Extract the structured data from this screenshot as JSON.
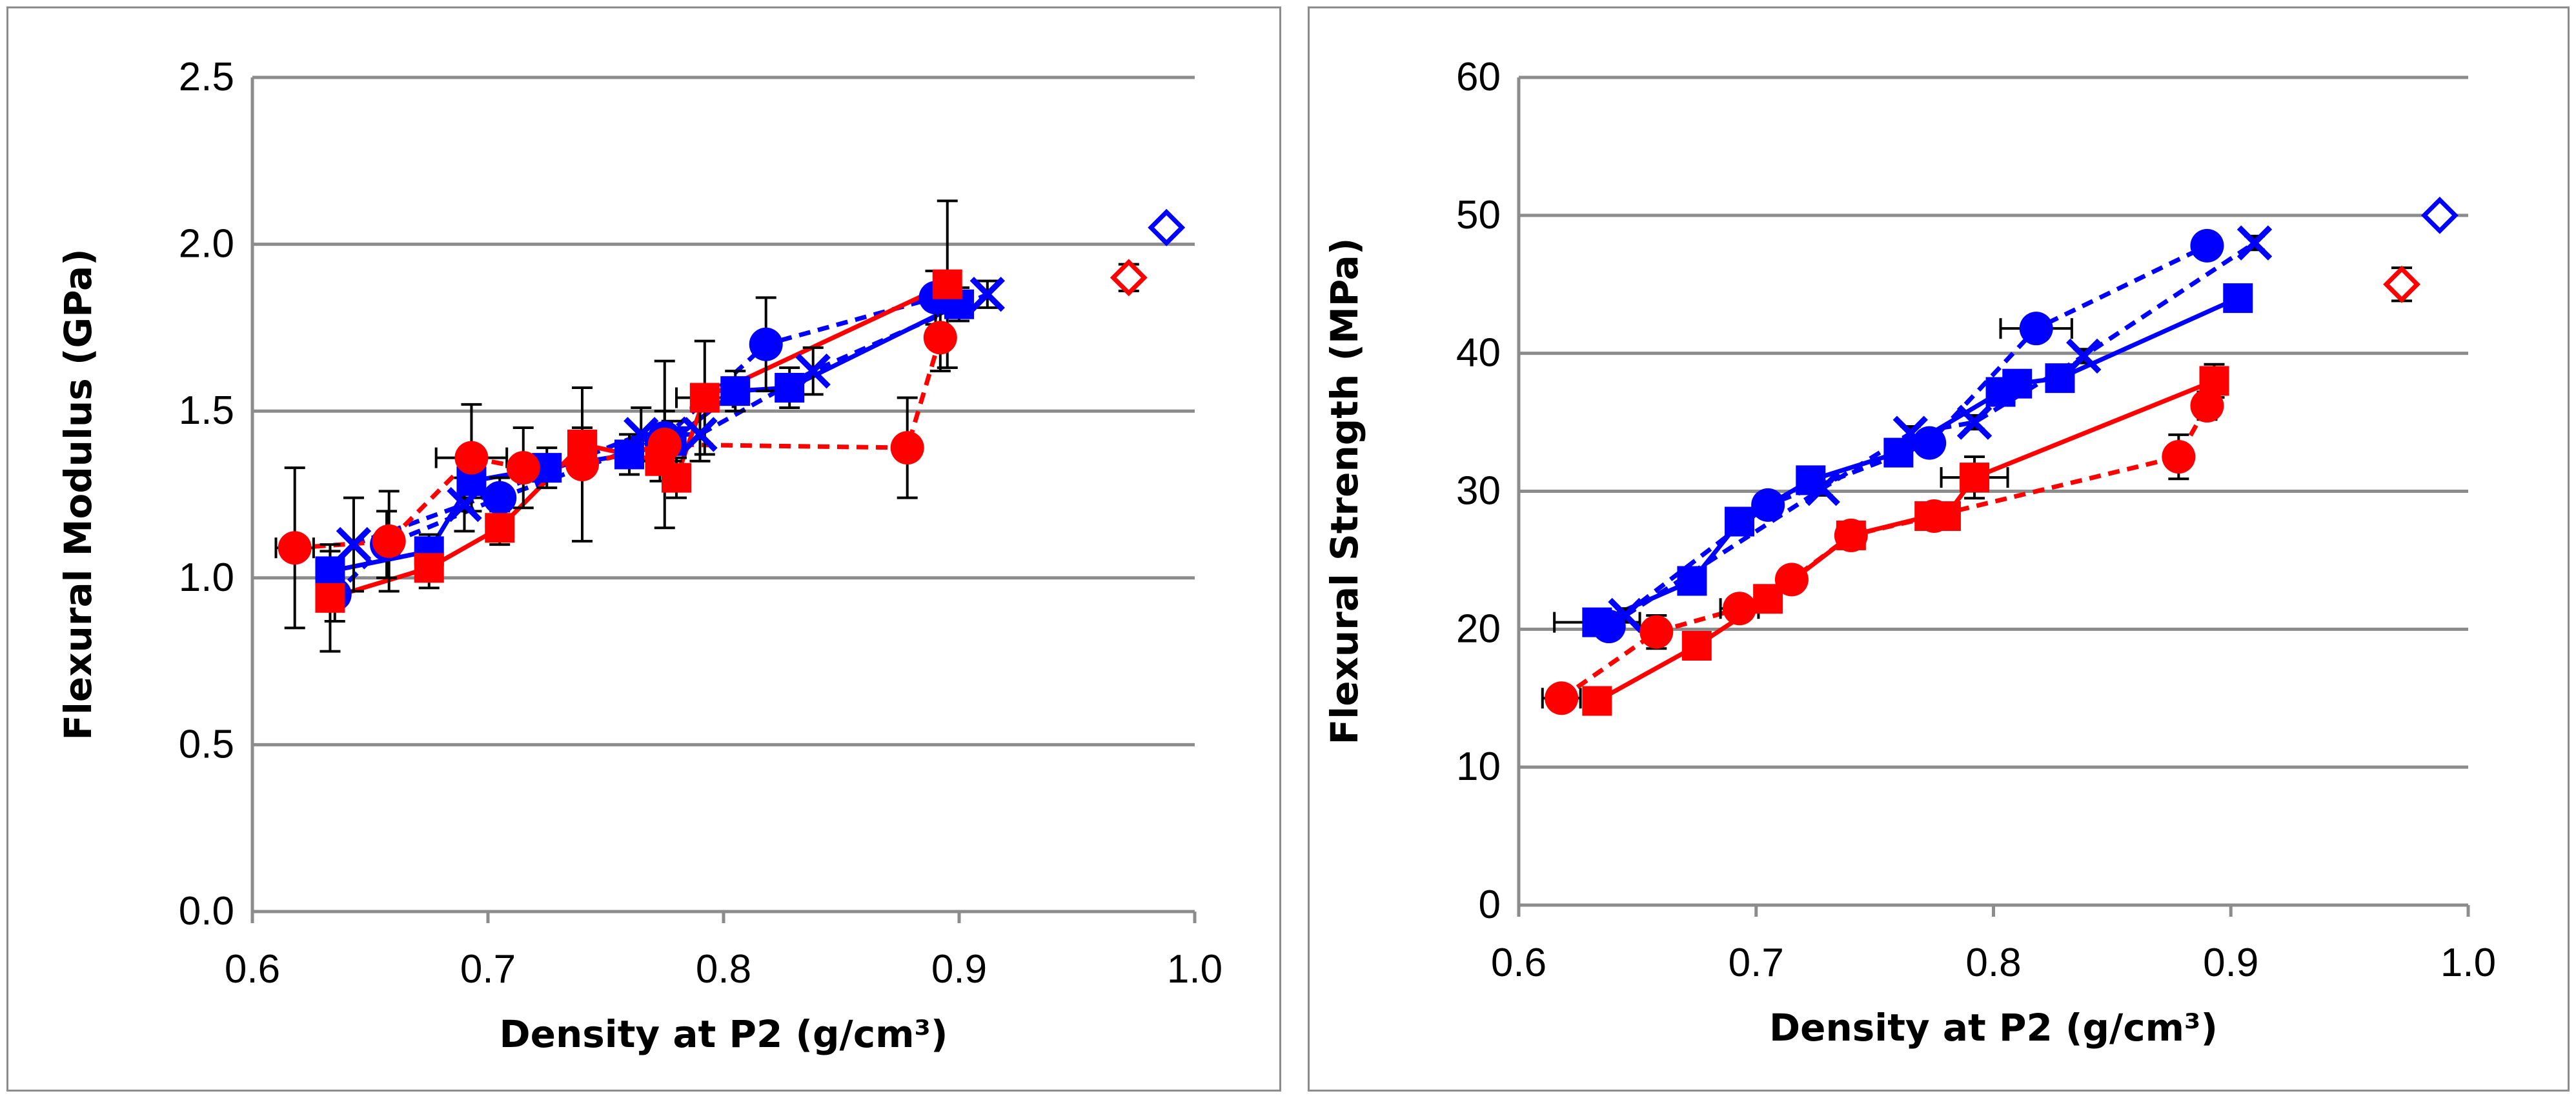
{
  "chart_data": [
    {
      "type": "scatter",
      "title": "",
      "xlabel": "Density at P2 (g/cm³)",
      "ylabel": "Flexural Modulus (GPa)",
      "xlim": [
        0.6,
        1.0
      ],
      "ylim": [
        0.0,
        2.5
      ],
      "x_ticks": [
        "0.6",
        "0.7",
        "0.8",
        "0.9",
        "1.0"
      ],
      "y_ticks": [
        "0.0",
        "0.5",
        "1.0",
        "1.5",
        "2.0",
        "2.5"
      ],
      "grid": "horizontal",
      "legend": "none",
      "series": [
        {
          "name": "blue-circle-dashed",
          "color": "#0000ff",
          "marker": "circle",
          "line": "dashed",
          "x": [
            0.635,
            0.657,
            0.705,
            0.775,
            0.818,
            0.89
          ],
          "y": [
            0.95,
            1.1,
            1.24,
            1.42,
            1.7,
            1.84
          ],
          "yerr": [
            0.08,
            0.1,
            0.06,
            0.08,
            0.14,
            0.08
          ]
        },
        {
          "name": "blue-square-solid",
          "color": "#0000ff",
          "marker": "square",
          "line": "solid",
          "x": [
            0.633,
            0.675,
            0.693,
            0.725,
            0.76,
            0.778,
            0.805,
            0.828,
            0.9
          ],
          "y": [
            1.02,
            1.08,
            1.29,
            1.33,
            1.37,
            1.41,
            1.56,
            1.57,
            1.82
          ],
          "yerr": [
            0.06,
            0.05,
            0.05,
            0.06,
            0.06,
            0.06,
            0.06,
            0.06,
            0.05
          ]
        },
        {
          "name": "blue-x-dashed",
          "color": "#0000ff",
          "marker": "x",
          "line": "dashed",
          "x": [
            0.643,
            0.69,
            0.765,
            0.79,
            0.838,
            0.912
          ],
          "y": [
            1.1,
            1.22,
            1.43,
            1.43,
            1.62,
            1.85
          ],
          "yerr": [
            0.14,
            0.08,
            0.08,
            0.08,
            0.07,
            0.04
          ]
        },
        {
          "name": "red-circle-dashed",
          "color": "#ff0000",
          "marker": "circle",
          "line": "dashed",
          "x": [
            0.618,
            0.658,
            0.693,
            0.715,
            0.74,
            0.775,
            0.878,
            0.892
          ],
          "y": [
            1.09,
            1.11,
            1.36,
            1.33,
            1.34,
            1.4,
            1.39,
            1.72
          ],
          "yerr": [
            0.24,
            0.15,
            0.16,
            0.12,
            0.23,
            0.25,
            0.15,
            0.1
          ],
          "xerr": [
            0.008,
            0,
            0.015,
            0,
            0,
            0,
            0,
            0
          ]
        },
        {
          "name": "red-square-solid",
          "color": "#ff0000",
          "marker": "square",
          "line": "solid",
          "x": [
            0.633,
            0.675,
            0.705,
            0.74,
            0.773,
            0.78,
            0.792,
            0.895
          ],
          "y": [
            0.94,
            1.03,
            1.15,
            1.4,
            1.35,
            1.3,
            1.54,
            1.88
          ],
          "yerr": [
            0.16,
            0.06,
            0.05,
            0.05,
            0.06,
            0.06,
            0.17,
            0.25
          ],
          "xerr": [
            0,
            0,
            0,
            0,
            0,
            0,
            0.012,
            0
          ]
        },
        {
          "name": "red-diamond",
          "color": "#ff0000",
          "marker": "diamond",
          "line": "none",
          "x": [
            0.972
          ],
          "y": [
            1.9
          ],
          "yerr": [
            0.04
          ]
        },
        {
          "name": "blue-diamond",
          "color": "#0000ff",
          "marker": "diamond",
          "line": "none",
          "x": [
            0.988
          ],
          "y": [
            2.05
          ],
          "yerr": [
            0.0
          ]
        }
      ]
    },
    {
      "type": "scatter",
      "title": "",
      "xlabel": "Density at P2 (g/cm³)",
      "ylabel": "Flexural Strength (MPa)",
      "xlim": [
        0.6,
        1.0
      ],
      "ylim": [
        0,
        60
      ],
      "x_ticks": [
        "0.6",
        "0.7",
        "0.8",
        "0.9",
        "1.0"
      ],
      "y_ticks": [
        "0",
        "10",
        "20",
        "30",
        "40",
        "50",
        "60"
      ],
      "grid": "horizontal",
      "legend": "none",
      "series": [
        {
          "name": "blue-circle-dashed",
          "color": "#0000ff",
          "marker": "circle",
          "line": "dashed",
          "x": [
            0.638,
            0.705,
            0.773,
            0.818,
            0.89
          ],
          "y": [
            20.2,
            29.0,
            33.5,
            41.8,
            47.8
          ],
          "yerr": [
            0.6,
            0.6,
            0.6,
            0.8,
            0.6
          ],
          "xerr": [
            0,
            0,
            0,
            0.015,
            0
          ]
        },
        {
          "name": "blue-square-solid",
          "color": "#0000ff",
          "marker": "square",
          "line": "solid",
          "x": [
            0.633,
            0.673,
            0.693,
            0.723,
            0.76,
            0.803,
            0.81,
            0.828,
            0.903
          ],
          "y": [
            20.5,
            23.5,
            27.8,
            30.8,
            32.8,
            37.2,
            37.8,
            38.2,
            44.0
          ],
          "yerr": [
            0.5,
            0.5,
            0.5,
            0.5,
            0.5,
            0.5,
            0.5,
            0.5,
            0.5
          ],
          "xerr": [
            0.018,
            0,
            0,
            0,
            0,
            0,
            0,
            0,
            0
          ]
        },
        {
          "name": "blue-x-dashed",
          "color": "#0000ff",
          "marker": "x",
          "line": "dashed",
          "x": [
            0.645,
            0.728,
            0.765,
            0.792,
            0.838,
            0.91
          ],
          "y": [
            21.0,
            30.2,
            34.2,
            35.0,
            39.8,
            48.0
          ],
          "yerr": [
            0.5,
            0.5,
            0.5,
            0.5,
            0.5,
            0.5
          ]
        },
        {
          "name": "red-circle-dashed",
          "color": "#ff0000",
          "marker": "circle",
          "line": "dashed",
          "x": [
            0.618,
            0.658,
            0.693,
            0.715,
            0.74,
            0.775,
            0.878,
            0.89
          ],
          "y": [
            15.0,
            19.8,
            21.5,
            23.6,
            26.8,
            28.2,
            32.5,
            36.2
          ],
          "yerr": [
            0.5,
            1.2,
            0.6,
            0.6,
            0.6,
            0.6,
            1.6,
            1.0
          ],
          "xerr": [
            0.008,
            0,
            0.008,
            0,
            0,
            0,
            0,
            0
          ]
        },
        {
          "name": "red-square-solid",
          "color": "#ff0000",
          "marker": "square",
          "line": "solid",
          "x": [
            0.633,
            0.675,
            0.705,
            0.74,
            0.773,
            0.78,
            0.792,
            0.893
          ],
          "y": [
            14.8,
            18.8,
            22.2,
            26.8,
            28.2,
            28.2,
            31.0,
            38.0
          ],
          "yerr": [
            0.5,
            0.5,
            0.5,
            0.5,
            0.5,
            0.5,
            1.5,
            1.2
          ],
          "xerr": [
            0,
            0,
            0,
            0,
            0,
            0,
            0.014,
            0
          ]
        },
        {
          "name": "red-diamond",
          "color": "#ff0000",
          "marker": "diamond",
          "line": "none",
          "x": [
            0.972
          ],
          "y": [
            45.0
          ],
          "yerr": [
            1.2
          ]
        },
        {
          "name": "blue-diamond",
          "color": "#0000ff",
          "marker": "diamond",
          "line": "none",
          "x": [
            0.988
          ],
          "y": [
            50.0
          ],
          "yerr": [
            0.0
          ]
        }
      ]
    }
  ]
}
